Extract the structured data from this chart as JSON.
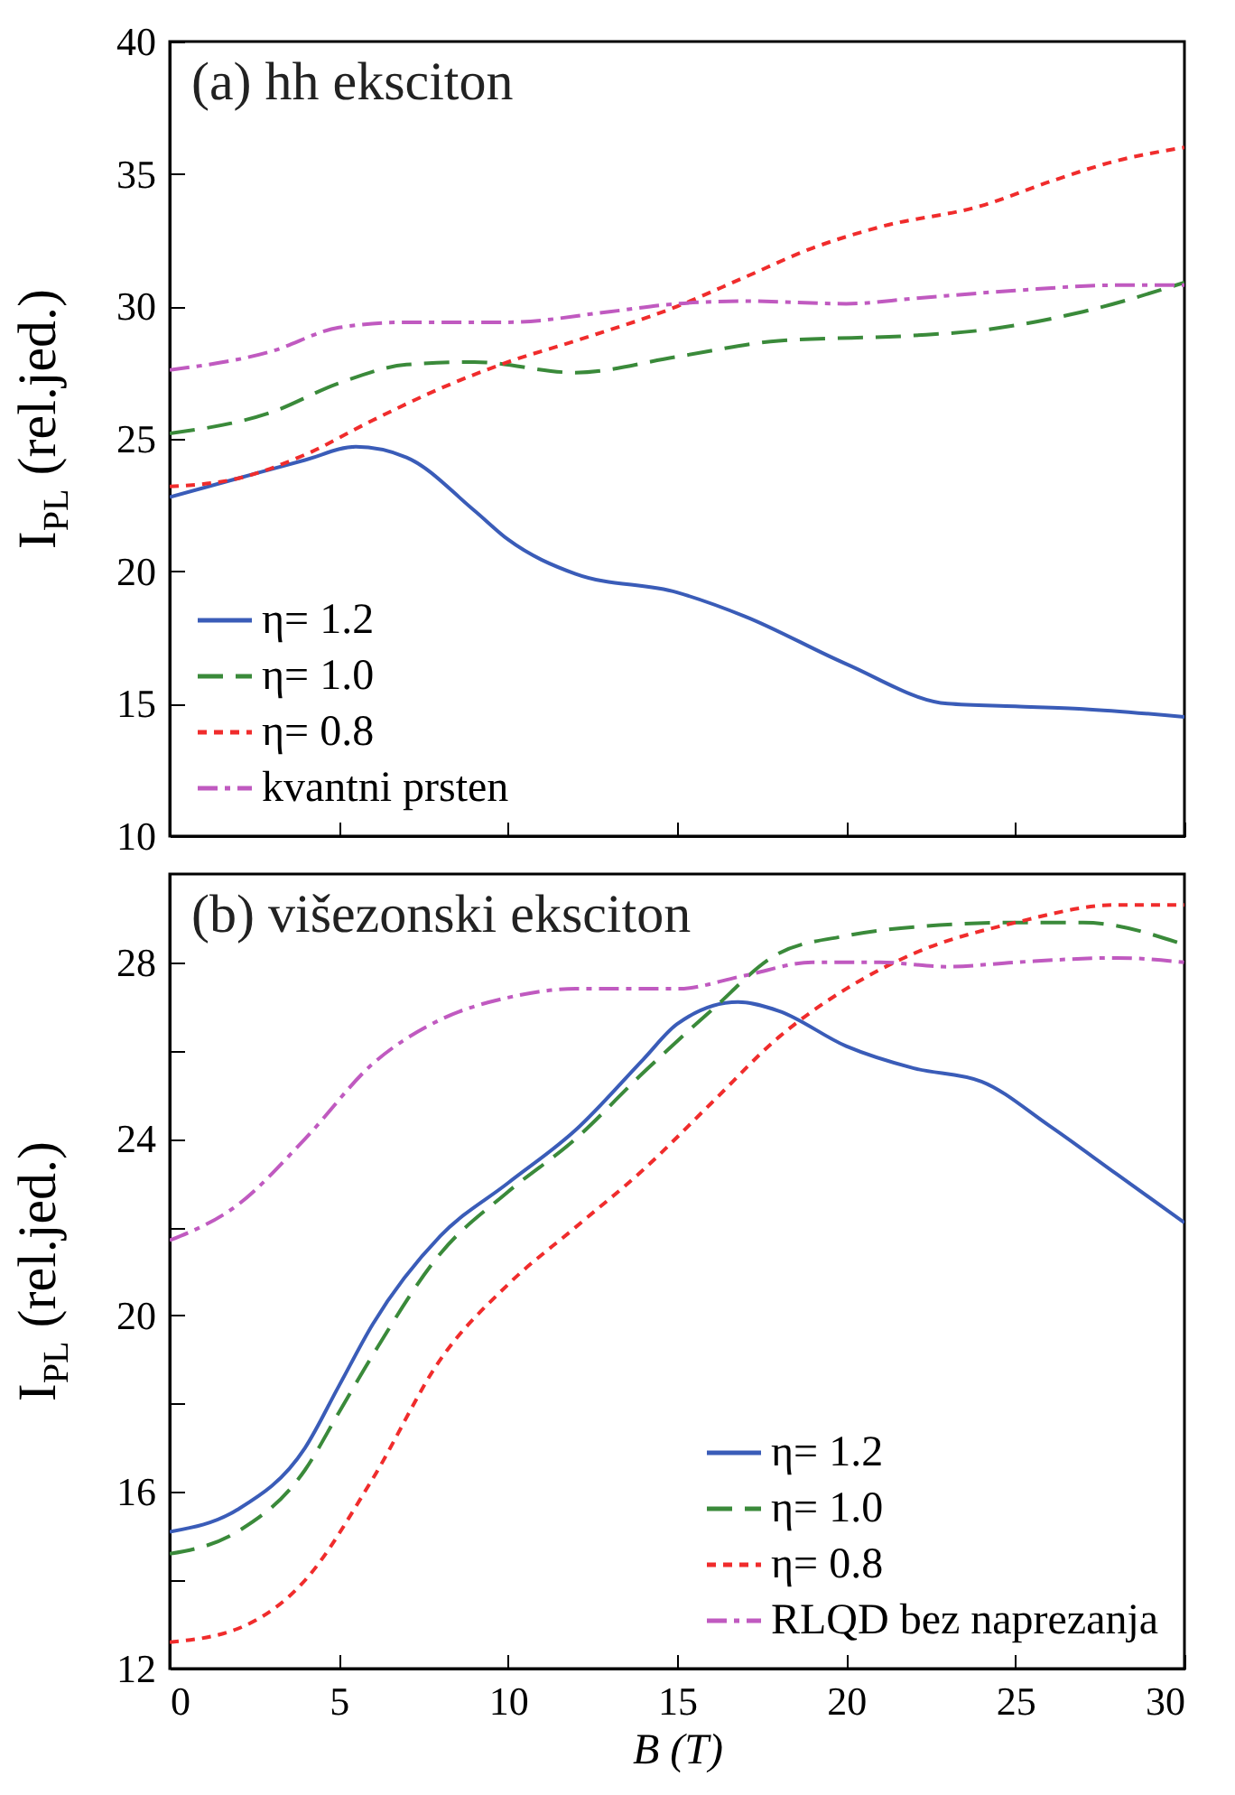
{
  "chart_data": [
    {
      "type": "line",
      "ylabel": "I$_{PL}$ (rel.jed.)",
      "annotations": [
        "(a) hh eksciton"
      ],
      "xlim": [
        0,
        30
      ],
      "xticks": [
        0,
        5,
        10,
        15,
        20,
        25,
        30
      ],
      "ylim": [
        10,
        40
      ],
      "yticks": [
        10,
        15,
        20,
        25,
        30,
        35,
        40
      ],
      "tick_labels": "y",
      "legend": "bottom left",
      "grid": false,
      "series": [
        {
          "name": "η= 1.2",
          "color": "#3a5cb8",
          "line_style": "solid",
          "x": [
            0,
            2,
            4,
            5.5,
            7,
            9,
            10,
            12,
            15,
            17,
            20,
            23,
            25,
            27,
            30
          ],
          "values": [
            22.8,
            23.5,
            24.2,
            24.7,
            24.3,
            22.3,
            21.2,
            19.9,
            19.2,
            18.3,
            16.5,
            15.0,
            14.9,
            14.8,
            14.5
          ]
        },
        {
          "name": "η= 1.0",
          "color": "#3a8a3a",
          "line_style": "dashed",
          "x": [
            0,
            3,
            5,
            7,
            9,
            12,
            15,
            18,
            22,
            24,
            27,
            30
          ],
          "values": [
            25.2,
            26.0,
            27.1,
            27.8,
            27.9,
            27.5,
            28.1,
            28.7,
            28.9,
            29.1,
            29.8,
            30.9
          ]
        },
        {
          "name": "η= 0.8",
          "color": "#f02c2c",
          "line_style": "dotted",
          "x": [
            0,
            2,
            4,
            6,
            8,
            10,
            12,
            15,
            17,
            19,
            21,
            24,
            26,
            28,
            30
          ],
          "values": [
            23.2,
            23.5,
            24.4,
            25.7,
            26.9,
            27.9,
            28.7,
            30.0,
            31.1,
            32.2,
            33.0,
            33.8,
            34.7,
            35.5,
            36.0
          ]
        },
        {
          "name": "kvantni prsten",
          "color": "#c05ac0",
          "line_style": "dashdot",
          "x": [
            0,
            3,
            5,
            7,
            10,
            13,
            15,
            17,
            20,
            22,
            25,
            28,
            30
          ],
          "values": [
            27.6,
            28.3,
            29.2,
            29.4,
            29.4,
            29.8,
            30.1,
            30.2,
            30.1,
            30.3,
            30.6,
            30.8,
            30.8
          ]
        }
      ]
    },
    {
      "type": "line",
      "xlabel": "B (T)",
      "ylabel": "I$_{PL}$ (rel.jed.)",
      "annotations": [
        "(b) višezonski eksciton"
      ],
      "xlim": [
        0,
        30
      ],
      "xticks": [
        0,
        5,
        10,
        15,
        20,
        25,
        30
      ],
      "ylim": [
        12,
        30
      ],
      "yticks": [
        12,
        {
          "value": 14,
          "label": null
        },
        16,
        {
          "value": 18,
          "label": null
        },
        20,
        {
          "value": 22,
          "label": null
        },
        24,
        {
          "value": 26,
          "label": null
        },
        28
      ],
      "legend": "bottom right",
      "grid": false,
      "series": [
        {
          "name": "η= 1.2",
          "color": "#3a5cb8",
          "line_style": "solid",
          "x": [
            0,
            2,
            4,
            5,
            6,
            8,
            10,
            12,
            14,
            15,
            16.8,
            18,
            20,
            22,
            24,
            26,
            28,
            30
          ],
          "values": [
            15.1,
            15.6,
            17.0,
            18.4,
            19.8,
            21.8,
            23.0,
            24.2,
            25.8,
            26.6,
            27.1,
            26.9,
            26.1,
            25.6,
            25.3,
            24.3,
            23.2,
            22.1
          ]
        },
        {
          "name": "η= 1.0",
          "color": "#3a8a3a",
          "line_style": "dashed",
          "x": [
            0,
            2,
            4,
            5,
            6,
            8,
            10,
            12,
            14,
            16,
            18,
            20,
            22,
            25,
            27,
            30
          ],
          "values": [
            14.6,
            15.1,
            16.5,
            17.8,
            19.1,
            21.4,
            22.8,
            24.0,
            25.5,
            26.9,
            28.2,
            28.6,
            28.8,
            28.9,
            28.9,
            28.4
          ]
        },
        {
          "name": "η= 0.8",
          "color": "#f02c2c",
          "line_style": "dotted",
          "x": [
            0,
            2,
            4,
            6,
            8,
            10,
            12,
            14,
            16,
            18,
            20,
            22,
            25,
            28,
            30
          ],
          "values": [
            12.6,
            12.9,
            14.0,
            16.3,
            19.0,
            20.7,
            22.0,
            23.3,
            24.8,
            26.3,
            27.4,
            28.2,
            28.9,
            29.3,
            29.3
          ]
        },
        {
          "name": "RLQD bez naprezanja",
          "color": "#c05ac0",
          "line_style": "dashdot",
          "x": [
            0,
            2,
            4,
            6,
            8,
            10,
            12,
            15,
            17,
            19,
            21,
            23,
            25,
            28,
            30
          ],
          "values": [
            21.7,
            22.5,
            24.0,
            25.7,
            26.7,
            27.2,
            27.4,
            27.4,
            27.7,
            28.0,
            28.0,
            27.9,
            28.0,
            28.1,
            28.0
          ]
        }
      ]
    }
  ]
}
